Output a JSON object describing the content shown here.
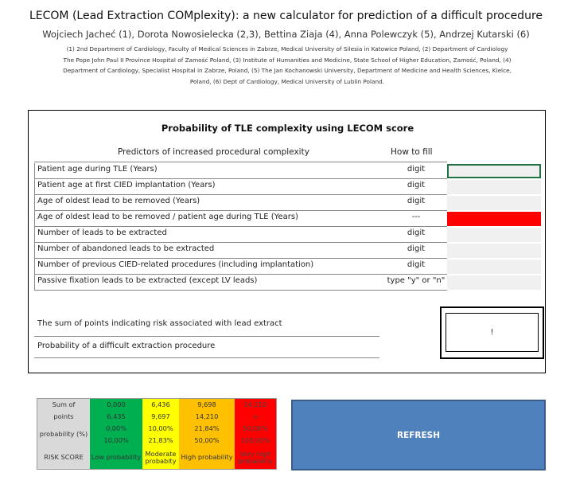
{
  "header": {
    "title": "LECOM (Lead Extraction COMplexity): a new calculator for prediction of a difficult procedure",
    "authors": "Wojciech Jacheć (1), Dorota Nowosielecka (2,3), Bettina Ziaja (4), Anna Polewczyk (5), Andrzej Kutarski (6)",
    "affiliations": [
      "(1) 2nd Department of Cardiology, Faculty of Medical Sciences in Zabrze, Medical University of Silesia in Katowice Poland, (2) Department of Cardiology",
      "The Pope John Paul II Province Hospital of Zamość Poland, (3) Institute of Humanities and Medicine, State School of Higher Education, Zamość, Poland, (4)",
      "Department of Cardiology, Specialist Hospital in Zabrze, Poland, (5) The Jan Kochanowski University, Department of Medicine and Health Sciences, Kielce,",
      "Poland, (6) Dept of Cardiology, Medical University of Lublin Poland."
    ]
  },
  "calculator": {
    "title": "Probability of TLE complexity using LECOM score",
    "col_predictors": "Predictors of increased procedural complexity",
    "col_how": "How to fill",
    "rows": [
      {
        "label": "Patient age during TLE (Years)",
        "how": "digit",
        "value": ""
      },
      {
        "label": "Patient age at first CIED implantation (Years)",
        "how": "digit",
        "value": ""
      },
      {
        "label": "Age of oldest lead to be removed (Years)",
        "how": "digit",
        "value": ""
      },
      {
        "label": "Age of oldest lead to be removed / patient age during TLE (Years)",
        "how": "---",
        "value": ""
      },
      {
        "label": "Number of leads to be extracted",
        "how": "digit",
        "value": ""
      },
      {
        "label": "Number of abandoned leads to be extracted",
        "how": "digit",
        "value": ""
      },
      {
        "label": "Number of previous CIED-related procedures (including implantation)",
        "how": "digit",
        "value": ""
      },
      {
        "label": "Passive fixation leads to be extracted (except LV leads)",
        "how": "type \"y\" or \"n\"",
        "value": ""
      }
    ],
    "sum_label": "The sum of points indicating risk associated with lead extract",
    "prob_label": "Probability of a difficult extraction procedure",
    "result_value": "!"
  },
  "legend": {
    "sum_label_1": "Sum of",
    "sum_label_2": "points",
    "prob_label": "probability (%)",
    "risk_label": "RISK SCORE",
    "bands": [
      {
        "sum_low": "0,000",
        "sum_high": "6,435",
        "prob_low": "0,00%",
        "prob_high": "10,00%",
        "risk": "Low probability",
        "color": "#00b050"
      },
      {
        "sum_low": "6,436",
        "sum_high": "9,697",
        "prob_low": "10,00%",
        "prob_high": "21,83%",
        "risk": "Moderate probabity",
        "color": "#ffff00"
      },
      {
        "sum_low": "9,698",
        "sum_high": "14,210",
        "prob_low": "21,84%",
        "prob_high": "50,00%",
        "risk": "High probability",
        "color": "#ffc000"
      },
      {
        "sum_low": "14,210",
        "sum_high": ">",
        "prob_low": "50,00%",
        "prob_high": "100,00%",
        "risk": "Very high probability",
        "color": "#ff0000"
      }
    ]
  },
  "refresh_label": "REFRESH"
}
